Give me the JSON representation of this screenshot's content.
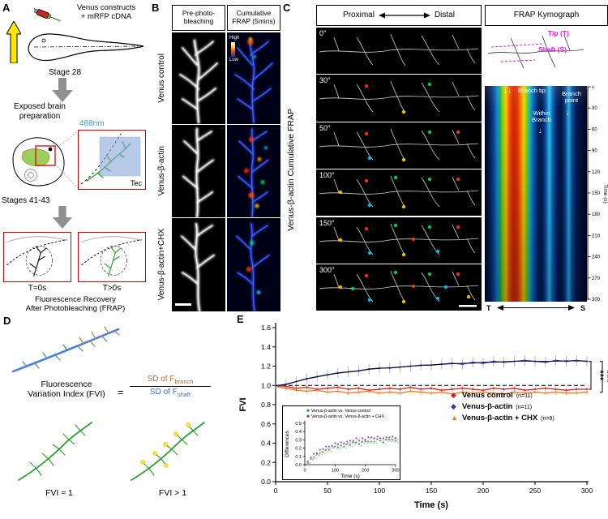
{
  "panel_a": {
    "label": "A",
    "construct_line1": "Venus constructs",
    "construct_line2": "+ mRFP cDNA",
    "stage": "Stage 28",
    "prep_line1": "Exposed brain",
    "prep_line2": "preparation",
    "wavelength": "488nm",
    "region": "Tec",
    "stages": "Stages 41-43",
    "t0": "T=0s",
    "t1": "T>0s",
    "caption_line1": "Fluorescence Recovery",
    "caption_line2": "After Photobleaching (FRAP)"
  },
  "panel_b": {
    "label": "B",
    "col1_line1": "Pre-photo-",
    "col1_line2": "bleaching",
    "col2_line1": "Cumulative",
    "col2_line2": "FRAP (5mins)",
    "scale_high": "High",
    "scale_low": "Low",
    "rows": [
      "Venus control",
      "Venus-β-actin",
      "Venus-β-actin+CHX"
    ]
  },
  "panel_c": {
    "label": "C",
    "proximal": "Proximal",
    "distal": "Distal",
    "kymo_title": "FRAP Kymograph",
    "side_label": "Venus-β-actin Cumulative FRAP",
    "timepoints": [
      "0″",
      "30″",
      "50″",
      "100″",
      "150″",
      "300″"
    ],
    "tip_label": "Tip (T)",
    "shaft_label": "Shaft (S)",
    "branch_tip": "Branch tip",
    "within_branch": "Within Branch",
    "branch_point": "Branch point",
    "time_axis_label": "Time (s)",
    "time_ticks": [
      0,
      30,
      60,
      90,
      120,
      150,
      180,
      210,
      240,
      270,
      300
    ],
    "t_end": "T",
    "s_end": "S"
  },
  "panel_d": {
    "label": "D",
    "fvi_line1": "Fluorescence",
    "fvi_line2": "Variation Index (FVI)",
    "equals": "=",
    "num_text": "SD of F",
    "num_sub": "branch",
    "den_text": "SD of F",
    "den_sub": "shaft",
    "fvi_approx": "FVI ≈ 1",
    "fvi_greater": "FVI > 1"
  },
  "panel_e": {
    "label": "E"
  },
  "chart_data": {
    "type": "line",
    "xlabel": "Time (s)",
    "ylabel": "FVI",
    "xlim": [
      0,
      300
    ],
    "ylim": [
      0,
      1.6
    ],
    "xticks": [
      0,
      50,
      100,
      150,
      200,
      250,
      300
    ],
    "yticks": [
      0,
      0.2,
      0.4,
      0.6,
      0.8,
      1.0,
      1.2,
      1.4,
      1.6
    ],
    "reference_line_y": 1.0,
    "significance": [
      "***",
      "###"
    ],
    "x": [
      0,
      10,
      20,
      30,
      40,
      50,
      60,
      70,
      80,
      90,
      100,
      110,
      120,
      130,
      140,
      150,
      160,
      170,
      180,
      190,
      200,
      210,
      220,
      230,
      240,
      250,
      260,
      270,
      280,
      290,
      300
    ],
    "series": [
      {
        "name": "Venus control",
        "n_label": "(n=11)",
        "color": "#d42020",
        "marker": "◆",
        "sem": 0.025,
        "values": [
          1.0,
          0.99,
          0.97,
          0.98,
          0.96,
          0.97,
          0.98,
          0.96,
          0.97,
          0.95,
          0.96,
          0.97,
          0.96,
          0.98,
          0.96,
          0.97,
          0.95,
          0.96,
          0.97,
          0.96,
          0.95,
          0.97,
          0.96,
          0.97,
          0.95,
          0.96,
          0.97,
          0.96,
          0.95,
          0.96,
          0.96
        ]
      },
      {
        "name": "Venus-β-actin",
        "n_label": "(n=11)",
        "color": "#2b35c8",
        "marker": "◆",
        "sem": 0.055,
        "values": [
          0.99,
          1.01,
          1.04,
          1.07,
          1.09,
          1.11,
          1.13,
          1.14,
          1.15,
          1.17,
          1.18,
          1.18,
          1.19,
          1.2,
          1.21,
          1.21,
          1.22,
          1.23,
          1.22,
          1.24,
          1.23,
          1.25,
          1.24,
          1.25,
          1.26,
          1.25,
          1.24,
          1.26,
          1.25,
          1.26,
          1.25
        ]
      },
      {
        "name": "Venus-β-actin + CHX",
        "n_label": "(n=9)",
        "color": "#f07820",
        "marker": "▲",
        "sem": 0.03,
        "values": [
          0.99,
          0.97,
          0.95,
          0.94,
          0.95,
          0.93,
          0.94,
          0.92,
          0.93,
          0.94,
          0.92,
          0.93,
          0.92,
          0.94,
          0.93,
          0.92,
          0.93,
          0.91,
          0.93,
          0.92,
          0.93,
          0.92,
          0.91,
          0.93,
          0.92,
          0.93,
          0.92,
          0.93,
          0.92,
          0.92,
          0.93
        ]
      }
    ],
    "inset": {
      "ylabel": "Differences",
      "xlabel": "Time (s)",
      "xlim": [
        0,
        300
      ],
      "ylim": [
        0,
        0.5
      ],
      "yticks": [
        0,
        0.1,
        0.2,
        0.3,
        0.4,
        0.5
      ],
      "xticks": [
        0,
        100,
        200,
        300
      ],
      "series": [
        {
          "name": "Venus-β-actin vs. Venus control",
          "color": "#2e9e2e",
          "values": [
            0.0,
            0.02,
            0.07,
            0.09,
            0.13,
            0.14,
            0.15,
            0.18,
            0.18,
            0.22,
            0.22,
            0.21,
            0.23,
            0.22,
            0.25,
            0.24,
            0.27,
            0.27,
            0.25,
            0.28,
            0.28,
            0.28,
            0.28,
            0.28,
            0.31,
            0.29,
            0.27,
            0.3,
            0.3,
            0.3,
            0.29
          ]
        },
        {
          "name": "Venus-β-actin vs. Venus-β-actin + CHX",
          "color": "#8a2fa8",
          "values": [
            0.0,
            0.04,
            0.09,
            0.13,
            0.14,
            0.18,
            0.19,
            0.22,
            0.22,
            0.23,
            0.26,
            0.25,
            0.27,
            0.26,
            0.28,
            0.29,
            0.29,
            0.32,
            0.29,
            0.32,
            0.3,
            0.33,
            0.33,
            0.32,
            0.34,
            0.32,
            0.32,
            0.33,
            0.33,
            0.34,
            0.32
          ]
        }
      ]
    }
  }
}
